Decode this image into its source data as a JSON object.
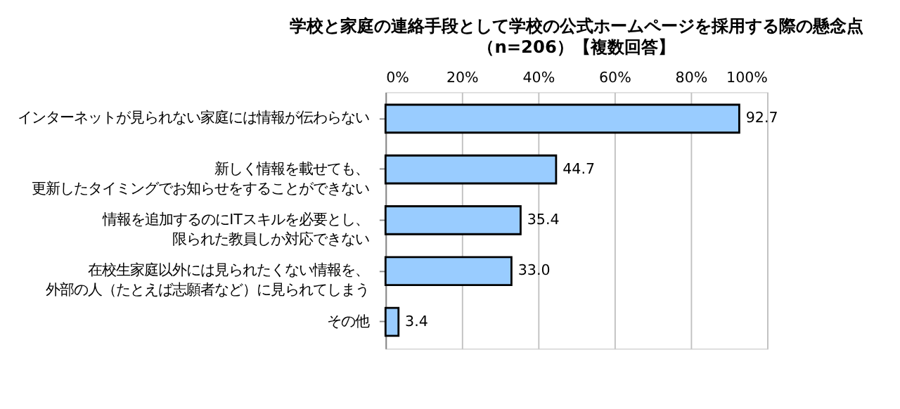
{
  "chart_data": {
    "type": "bar",
    "orientation": "horizontal",
    "title": "学校と家庭の連絡手段として学校の公式ホームページを採用する際の懸念点",
    "subtitle": "（n=206）【複数回答】",
    "categories": [
      "インターネットが見られない家庭には情報が伝わらない",
      "新しく情報を載せても、更新したタイミングでお知らせをすることができない",
      "情報を追加するのにITスキルを必要とし、限られた教員しか対応できない",
      "在校生家庭以外には見られたくない情報を、外部の人（たとえば志願者など）に見られてしまう",
      "その他"
    ],
    "values": [
      92.7,
      44.7,
      35.4,
      33.0,
      3.4
    ],
    "value_labels": [
      "92.7",
      "44.7",
      "35.4",
      "33.0",
      "3.4"
    ],
    "color": "#99ccff",
    "xlim": [
      0,
      100
    ],
    "xticks": [
      {
        "value": 0,
        "label": "0%"
      },
      {
        "value": 20,
        "label": "20%"
      },
      {
        "value": 40,
        "label": "40%"
      },
      {
        "value": 60,
        "label": "60%"
      },
      {
        "value": 80,
        "label": "80%"
      },
      {
        "value": 100,
        "label": "100%"
      }
    ],
    "grid": "x"
  }
}
